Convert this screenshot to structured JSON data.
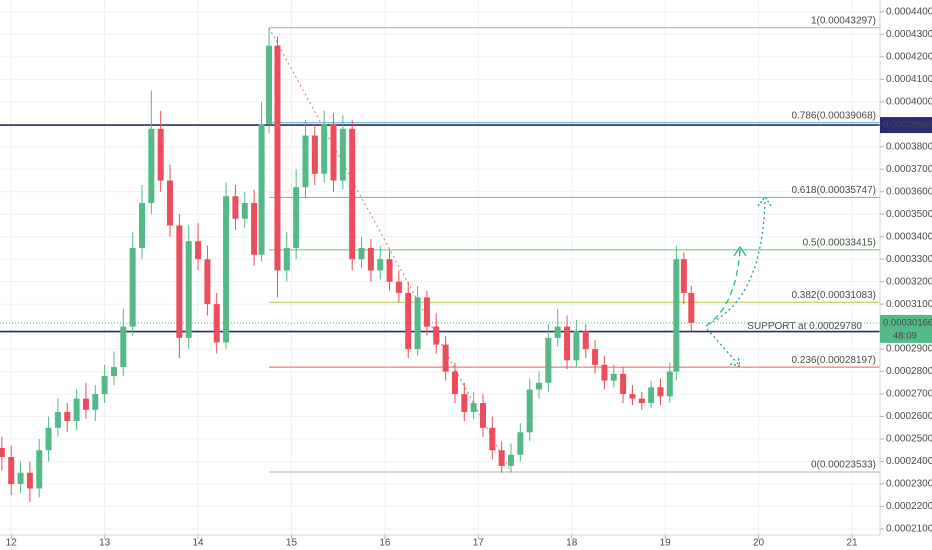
{
  "chart_data": {
    "type": "candlestick",
    "x": [
      11.9,
      12.0,
      12.1,
      12.2,
      12.3,
      12.4,
      12.5,
      12.6,
      12.7,
      12.8,
      12.9,
      13.0,
      13.1,
      13.2,
      13.3,
      13.4,
      13.5,
      13.6,
      13.7,
      13.8,
      13.9,
      14.0,
      14.1,
      14.2,
      14.3,
      14.4,
      14.5,
      14.6,
      14.68,
      14.76,
      14.85,
      14.95,
      15.05,
      15.15,
      15.25,
      15.35,
      15.45,
      15.55,
      15.65,
      15.75,
      15.85,
      15.95,
      16.05,
      16.15,
      16.25,
      16.35,
      16.45,
      16.55,
      16.65,
      16.75,
      16.85,
      16.95,
      17.05,
      17.15,
      17.25,
      17.35,
      17.45,
      17.55,
      17.65,
      17.75,
      17.85,
      17.95,
      18.05,
      18.15,
      18.25,
      18.35,
      18.45,
      18.55,
      18.65,
      18.75,
      18.85,
      18.95,
      19.05,
      19.12,
      19.2,
      19.28
    ],
    "open": [
      0.000246,
      0.000242,
      0.00023,
      0.000235,
      0.000228,
      0.000245,
      0.000255,
      0.000262,
      0.000258,
      0.000268,
      0.000263,
      0.00027,
      0.000278,
      0.000282,
      0.0003,
      0.000335,
      0.000355,
      0.000388,
      0.000365,
      0.000345,
      0.000295,
      0.000338,
      0.00033,
      0.00031,
      0.000293,
      0.000358,
      0.000348,
      0.000355,
      0.000332,
      0.00039,
      0.000425,
      0.000325,
      0.000335,
      0.000362,
      0.000385,
      0.000368,
      0.00039,
      0.000365,
      0.000388,
      0.00033,
      0.000335,
      0.000325,
      0.00033,
      0.00032,
      0.000315,
      0.00029,
      0.000313,
      0.0003,
      0.000292,
      0.00028,
      0.00027,
      0.000262,
      0.000266,
      0.000255,
      0.000245,
      0.000238,
      0.000243,
      0.000253,
      0.000272,
      0.000275,
      0.000295,
      0.0003,
      0.000285,
      0.000298,
      0.00029,
      0.000283,
      0.000276,
      0.000279,
      0.00027,
      0.000268,
      0.000266,
      0.000273,
      0.000269,
      0.00028,
      0.00033,
      0.000315
    ],
    "high": [
      0.000251,
      0.000247,
      0.00024,
      0.00024,
      0.00025,
      0.00026,
      0.000268,
      0.000266,
      0.000272,
      0.000275,
      0.000274,
      0.000283,
      0.000289,
      0.000308,
      0.000342,
      0.000363,
      0.000405,
      0.000396,
      0.000372,
      0.00035,
      0.000345,
      0.000346,
      0.000336,
      0.000315,
      0.000364,
      0.000363,
      0.00036,
      0.000361,
      0.0004,
      0.000433,
      0.000429,
      0.000342,
      0.00037,
      0.000392,
      0.00039,
      0.000396,
      0.000395,
      0.000394,
      0.000392,
      0.00034,
      0.000339,
      0.000336,
      0.000334,
      0.000325,
      0.00032,
      0.000318,
      0.000316,
      0.000306,
      0.000296,
      0.000284,
      0.000275,
      0.000271,
      0.00027,
      0.00026,
      0.000249,
      0.000248,
      0.000257,
      0.000277,
      0.00028,
      0.000301,
      0.000308,
      0.000305,
      0.000303,
      0.000301,
      0.000294,
      0.000287,
      0.000283,
      0.000282,
      0.000274,
      0.000271,
      0.000276,
      0.000277,
      0.000284,
      0.000336,
      0.000333,
      0.000318
    ],
    "low": [
      0.000236,
      0.000225,
      0.000226,
      0.000222,
      0.000224,
      0.00024,
      0.000251,
      0.000253,
      0.000254,
      0.000259,
      0.000258,
      0.000266,
      0.000274,
      0.000278,
      0.000296,
      0.00033,
      0.00035,
      0.00036,
      0.00034,
      0.000286,
      0.00029,
      0.000325,
      0.000305,
      0.000288,
      0.00029,
      0.000343,
      0.000344,
      0.000327,
      0.000329,
      0.000386,
      0.000313,
      0.00032,
      0.00033,
      0.000357,
      0.000363,
      0.000364,
      0.00036,
      0.000361,
      0.000325,
      0.000326,
      0.00032,
      0.000321,
      0.000316,
      0.000311,
      0.000286,
      0.000287,
      0.000296,
      0.000288,
      0.000276,
      0.000266,
      0.000258,
      0.000259,
      0.000251,
      0.000241,
      0.000235,
      0.000235,
      0.00024,
      0.000249,
      0.000268,
      0.000271,
      0.000291,
      0.000281,
      0.000282,
      0.000286,
      0.000279,
      0.000272,
      0.000273,
      0.000266,
      0.000265,
      0.000263,
      0.000264,
      0.000265,
      0.000266,
      0.000276,
      0.00031,
      0.000298
    ],
    "close": [
      0.000242,
      0.00023,
      0.000235,
      0.000228,
      0.000245,
      0.000255,
      0.000262,
      0.000258,
      0.000268,
      0.000263,
      0.00027,
      0.000278,
      0.000282,
      0.0003,
      0.000335,
      0.000355,
      0.000388,
      0.000365,
      0.000345,
      0.000295,
      0.000338,
      0.00033,
      0.00031,
      0.000293,
      0.000358,
      0.000348,
      0.000355,
      0.000332,
      0.00039,
      0.000425,
      0.000325,
      0.000335,
      0.000362,
      0.000385,
      0.000368,
      0.00039,
      0.000365,
      0.000388,
      0.00033,
      0.000335,
      0.000325,
      0.00033,
      0.00032,
      0.000315,
      0.00029,
      0.000313,
      0.0003,
      0.000292,
      0.00028,
      0.00027,
      0.000262,
      0.000266,
      0.000255,
      0.000245,
      0.000238,
      0.000243,
      0.000253,
      0.000272,
      0.000275,
      0.000295,
      0.0003,
      0.000285,
      0.000298,
      0.00029,
      0.000283,
      0.000276,
      0.000279,
      0.00027,
      0.000268,
      0.000266,
      0.000273,
      0.000269,
      0.00028,
      0.00033,
      0.000315,
      0.00030166
    ],
    "up_color": "#53b987",
    "down_color": "#eb4d5c",
    "xlim": [
      11.88,
      21.3
    ],
    "ylim": [
      0.0002073,
      0.0004453
    ],
    "xticks": [
      12,
      13,
      14,
      15,
      16,
      17,
      18,
      19,
      20,
      21
    ],
    "yticks": [
      {
        "value": 0.00044,
        "label": "0.00044000"
      },
      {
        "value": 0.00043,
        "label": "0.00043000"
      },
      {
        "value": 0.00042,
        "label": "0.00042000"
      },
      {
        "value": 0.00041,
        "label": "0.00041000"
      },
      {
        "value": 0.0004,
        "label": "0.00040000"
      },
      {
        "value": 0.00038,
        "label": "0.00038000"
      },
      {
        "value": 0.00037,
        "label": "0.00037000"
      },
      {
        "value": 0.00036,
        "label": "0.00036000"
      },
      {
        "value": 0.00035,
        "label": "0.00035000"
      },
      {
        "value": 0.00034,
        "label": "0.00034000"
      },
      {
        "value": 0.00033,
        "label": "0.00033000"
      },
      {
        "value": 0.00032,
        "label": "0.00032000"
      },
      {
        "value": 0.00031,
        "label": "0.00031000"
      },
      {
        "value": 0.00029,
        "label": "0.00029000"
      },
      {
        "value": 0.00028,
        "label": "0.00028000"
      },
      {
        "value": 0.00027,
        "label": "0.00027000"
      },
      {
        "value": 0.00026,
        "label": "0.00026000"
      },
      {
        "value": 0.00025,
        "label": "0.00025000"
      },
      {
        "value": 0.00024,
        "label": "0.00024000"
      },
      {
        "value": 0.00023,
        "label": "0.00023000"
      },
      {
        "value": 0.00022,
        "label": "0.00022000"
      },
      {
        "value": 0.00021,
        "label": "0.00021000"
      }
    ],
    "grid": true,
    "fib_start_x": 14.76,
    "fib_end_x": 17.35,
    "fib_levels": [
      {
        "label": "1(0.00043297)",
        "value": 0.00043297,
        "color": "#9e9e9e"
      },
      {
        "label": "0.786(0.00039068)",
        "value": 0.00039068,
        "color": "#2196a8"
      },
      {
        "label": "0.618(0.00035747)",
        "value": 0.00035747,
        "color": "#26b59a"
      },
      {
        "label": "0.5(0.00033415)",
        "value": 0.00033415,
        "color": "#4caf50"
      },
      {
        "label": "0.382(0.00031083)",
        "value": 0.00031083,
        "color": "#a3b820"
      },
      {
        "label": "0.236(0.00028197)",
        "value": 0.00028197,
        "color": "#e53935"
      },
      {
        "label": "0(0.00023533)",
        "value": 0.00023533,
        "color": "#9e9e9e"
      }
    ],
    "horizontal_lines": [
      {
        "value": 0.00038966,
        "color": "#2a2a72"
      },
      {
        "label": "SUPPORT at 0.00029780",
        "value": 0.0002978,
        "color": "#2a2a72"
      }
    ],
    "last_price": 0.00030166,
    "countdown": "48:09"
  }
}
